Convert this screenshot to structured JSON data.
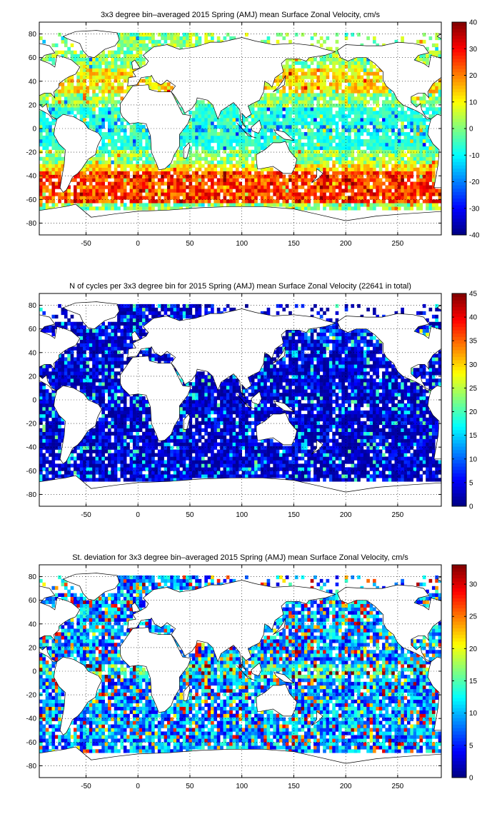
{
  "chart_data": [
    {
      "type": "heatmap",
      "title": "3x3 degree bin–averaged 2015 Spring (AMJ) mean Surface Zonal Velocity, cm/s",
      "xlim": [
        -95,
        292
      ],
      "ylim": [
        -90,
        90
      ],
      "xticks": [
        -50,
        0,
        50,
        100,
        150,
        200,
        250
      ],
      "yticks": [
        -80,
        -60,
        -40,
        -20,
        0,
        20,
        40,
        60,
        80
      ],
      "grid": true,
      "colormap": "jet",
      "clim": [
        -40,
        40
      ],
      "colorbar_ticks": [
        -40,
        -30,
        -20,
        -10,
        0,
        10,
        20,
        30,
        40
      ],
      "variable": "mean zonal velocity"
    },
    {
      "type": "heatmap",
      "title": "N of cycles per 3x3 degree bin for 2015 Spring (AMJ) mean Surface Zonal Velocity (22641 in total)",
      "xlim": [
        -95,
        292
      ],
      "ylim": [
        -90,
        90
      ],
      "xticks": [
        -50,
        0,
        50,
        100,
        150,
        200,
        250
      ],
      "yticks": [
        -80,
        -60,
        -40,
        -20,
        0,
        20,
        40,
        60,
        80
      ],
      "grid": true,
      "colormap": "jet",
      "clim": [
        0,
        45
      ],
      "colorbar_ticks": [
        0,
        5,
        10,
        15,
        20,
        25,
        30,
        35,
        40,
        45
      ],
      "variable": "number of cycles"
    },
    {
      "type": "heatmap",
      "title": "St. deviation for 3x3 degree bin–averaged 2015 Spring (AMJ) mean Surface Zonal Velocity, cm/s",
      "xlim": [
        -95,
        292
      ],
      "ylim": [
        -90,
        90
      ],
      "xticks": [
        -50,
        0,
        50,
        100,
        150,
        200,
        250
      ],
      "yticks": [
        -80,
        -60,
        -40,
        -20,
        0,
        20,
        40,
        60,
        80
      ],
      "grid": true,
      "colormap": "jet",
      "clim": [
        0,
        33
      ],
      "colorbar_ticks": [
        0,
        5,
        10,
        15,
        20,
        25,
        30
      ],
      "variable": "standard deviation"
    }
  ]
}
